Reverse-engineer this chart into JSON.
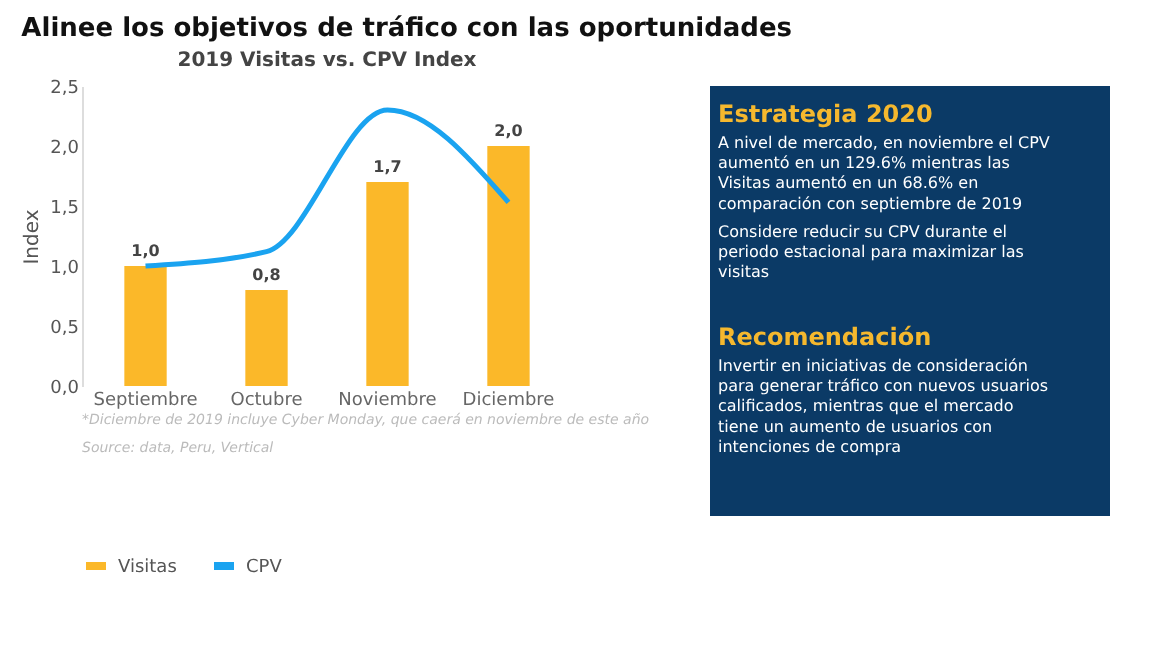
{
  "chart_data": {
    "type": "bar",
    "title": "2019 Visitas vs. CPV Index",
    "ylabel": "Index",
    "categories": [
      "Septiembre",
      "Octubre",
      "Noviembre",
      "Diciembre"
    ],
    "series": [
      {
        "name": "Visitas",
        "color": "#fbb829",
        "values": [
          1.0,
          0.8,
          1.7,
          2.0
        ],
        "value_labels": [
          "1,0",
          "0,8",
          "1,7",
          "2,0"
        ]
      },
      {
        "name": "CPV",
        "type": "line",
        "color": "#1aa3f0",
        "values": [
          1.0,
          1.12,
          2.3,
          1.53
        ]
      }
    ],
    "ylim": [
      0,
      2.5
    ],
    "yticks": [
      {
        "value": 0,
        "label": "0,0"
      },
      {
        "value": 0.5,
        "label": "0,5"
      },
      {
        "value": 1,
        "label": "1,0"
      },
      {
        "value": 1.5,
        "label": "1,5"
      },
      {
        "value": 2,
        "label": "2,0"
      },
      {
        "value": 2.5,
        "label": "2,5"
      }
    ],
    "grid": false,
    "legend": "bottom",
    "marker": "none",
    "line_style": "solid",
    "annotations": [
      "Alinee los objetivos de tráfico con las oportunidades",
      "*Diciembre de 2019 incluye Cyber Monday, que caerá en noviembre de este año",
      "Source: data, Peru, Vertical",
      "Estrategia 2020",
      "A nivel de mercado, en noviembre el CPV aumentó en un  129.6% mientras las Visitas aumentó en un  68.6% en comparación con septiembre de 2019",
      "Considere reducir su CPV durante el periodo estacional para maximizar las visitas",
      "Recomendación",
      "Invertir en iniciativas de consideración para generar tráfico con nuevos usuarios calificados, mientras que el mercado tiene un aumento de usuarios con intenciones de compra"
    ]
  }
}
